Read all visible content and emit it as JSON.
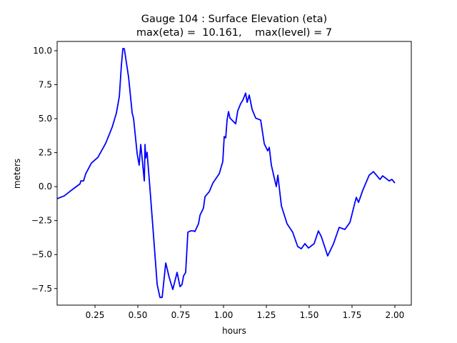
{
  "chart_data": {
    "type": "line",
    "title": "Gauge 104 : Surface Elevation (eta)",
    "subtitle": "max(eta) =  10.161,    max(level) = 7",
    "xlabel": "hours",
    "ylabel": "meters",
    "xlim": [
      0.029,
      2.096
    ],
    "ylim": [
      -8.72,
      10.68
    ],
    "grid": false,
    "xticks": [
      0.25,
      0.5,
      0.75,
      1.0,
      1.25,
      1.5,
      1.75,
      2.0
    ],
    "xtick_labels": [
      "0.25",
      "0.50",
      "0.75",
      "1.00",
      "1.25",
      "1.50",
      "1.75",
      "2.00"
    ],
    "yticks": [
      -7.5,
      -5.0,
      -2.5,
      0.0,
      2.5,
      5.0,
      7.5,
      10.0
    ],
    "ytick_labels": [
      "−7.5",
      "−5.0",
      "−2.5",
      "0.0",
      "2.5",
      "5.0",
      "7.5",
      "10.0"
    ],
    "series": [
      {
        "name": "eta",
        "color": "#0000ff",
        "x": [
          0.029,
          0.071,
          0.113,
          0.163,
          0.167,
          0.183,
          0.196,
          0.229,
          0.267,
          0.313,
          0.35,
          0.375,
          0.392,
          0.404,
          0.413,
          0.421,
          0.446,
          0.467,
          0.475,
          0.496,
          0.508,
          0.517,
          0.525,
          0.538,
          0.542,
          0.546,
          0.554,
          0.571,
          0.592,
          0.613,
          0.629,
          0.642,
          0.663,
          0.683,
          0.704,
          0.729,
          0.746,
          0.758,
          0.767,
          0.779,
          0.792,
          0.808,
          0.825,
          0.833,
          0.854,
          0.863,
          0.883,
          0.892,
          0.917,
          0.938,
          0.975,
          0.996,
          1.004,
          1.013,
          1.021,
          1.029,
          1.038,
          1.071,
          1.083,
          1.1,
          1.113,
          1.129,
          1.138,
          1.15,
          1.167,
          1.188,
          1.217,
          1.238,
          1.258,
          1.267,
          1.279,
          1.308,
          1.317,
          1.338,
          1.371,
          1.404,
          1.433,
          1.454,
          1.475,
          1.496,
          1.529,
          1.554,
          1.571,
          1.608,
          1.642,
          1.675,
          1.708,
          1.738,
          1.767,
          1.775,
          1.788,
          1.813,
          1.85,
          1.875,
          1.913,
          1.929,
          1.967,
          1.983,
          2.0
        ],
        "y": [
          -0.89,
          -0.68,
          -0.26,
          0.21,
          0.42,
          0.42,
          0.95,
          1.73,
          2.15,
          3.2,
          4.36,
          5.41,
          6.62,
          8.93,
          10.16,
          10.14,
          8.04,
          5.41,
          5.04,
          2.42,
          1.58,
          3.1,
          2.1,
          0.42,
          3.1,
          2.1,
          2.52,
          -0.21,
          -3.68,
          -7.2,
          -8.15,
          -8.15,
          -5.62,
          -6.67,
          -7.57,
          -6.31,
          -7.36,
          -7.2,
          -6.57,
          -6.31,
          -3.36,
          -3.26,
          -3.26,
          -3.31,
          -2.73,
          -2.1,
          -1.58,
          -0.74,
          -0.37,
          0.26,
          0.95,
          1.84,
          3.68,
          3.58,
          4.89,
          5.52,
          5.04,
          4.62,
          5.57,
          6.1,
          6.36,
          6.88,
          6.2,
          6.73,
          5.68,
          5.04,
          4.89,
          3.15,
          2.63,
          2.89,
          1.58,
          0.0,
          0.84,
          -1.42,
          -2.73,
          -3.36,
          -4.41,
          -4.57,
          -4.2,
          -4.52,
          -4.2,
          -3.26,
          -3.68,
          -5.1,
          -4.2,
          -3.0,
          -3.15,
          -2.63,
          -1.16,
          -0.79,
          -1.16,
          -0.26,
          0.84,
          1.1,
          0.53,
          0.79,
          0.42,
          0.53,
          0.26
        ]
      }
    ]
  }
}
